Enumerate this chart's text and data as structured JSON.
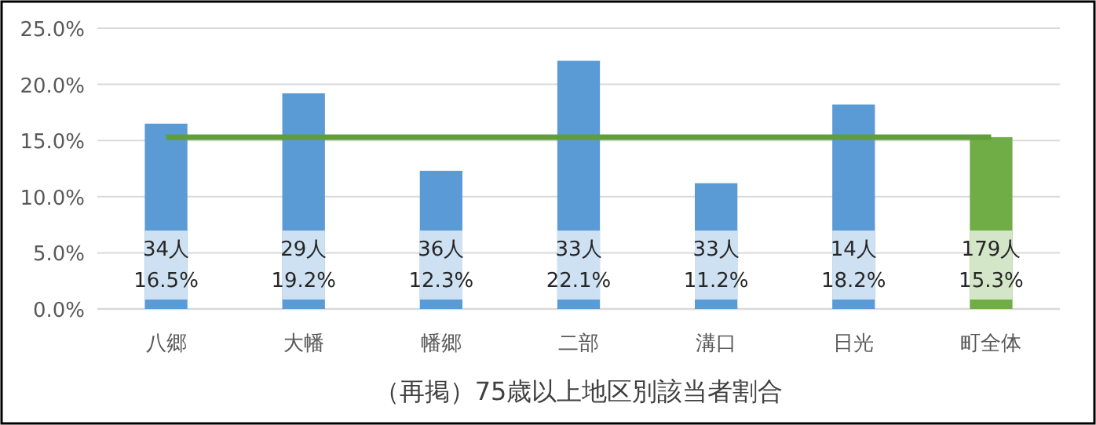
{
  "chart_data": {
    "type": "bar",
    "title": "（再掲）75歳以上地区別該当者割合",
    "categories": [
      "八郷",
      "大幡",
      "幡郷",
      "二部",
      "溝口",
      "日光",
      "町全体"
    ],
    "series": [
      {
        "colors": [
          "#5b9bd5",
          "#5b9bd5",
          "#5b9bd5",
          "#5b9bd5",
          "#5b9bd5",
          "#5b9bd5",
          "#70ad47"
        ],
        "values": [
          16.5,
          19.2,
          12.3,
          22.1,
          11.2,
          18.2,
          15.3
        ],
        "value_labels": [
          "34人\n16.5%",
          "29人\n19.2%",
          "36人\n12.3%",
          "33人\n22.1%",
          "33人\n11.2%",
          "14人\n18.2%",
          "179人\n15.3%"
        ]
      },
      {
        "type": "line",
        "color": "#5f9e38",
        "values": [
          15.3,
          15.3,
          15.3,
          15.3,
          15.3,
          15.3,
          15.3
        ]
      }
    ],
    "ylim": [
      0,
      25
    ],
    "yticks": [
      {
        "value": 0,
        "label": "0.0%"
      },
      {
        "value": 5,
        "label": "5.0%"
      },
      {
        "value": 10,
        "label": "10.0%"
      },
      {
        "value": 15,
        "label": "15.0%"
      },
      {
        "value": 20,
        "label": "20.0%"
      },
      {
        "value": 25,
        "label": "25.0%"
      }
    ],
    "grid": "y"
  }
}
